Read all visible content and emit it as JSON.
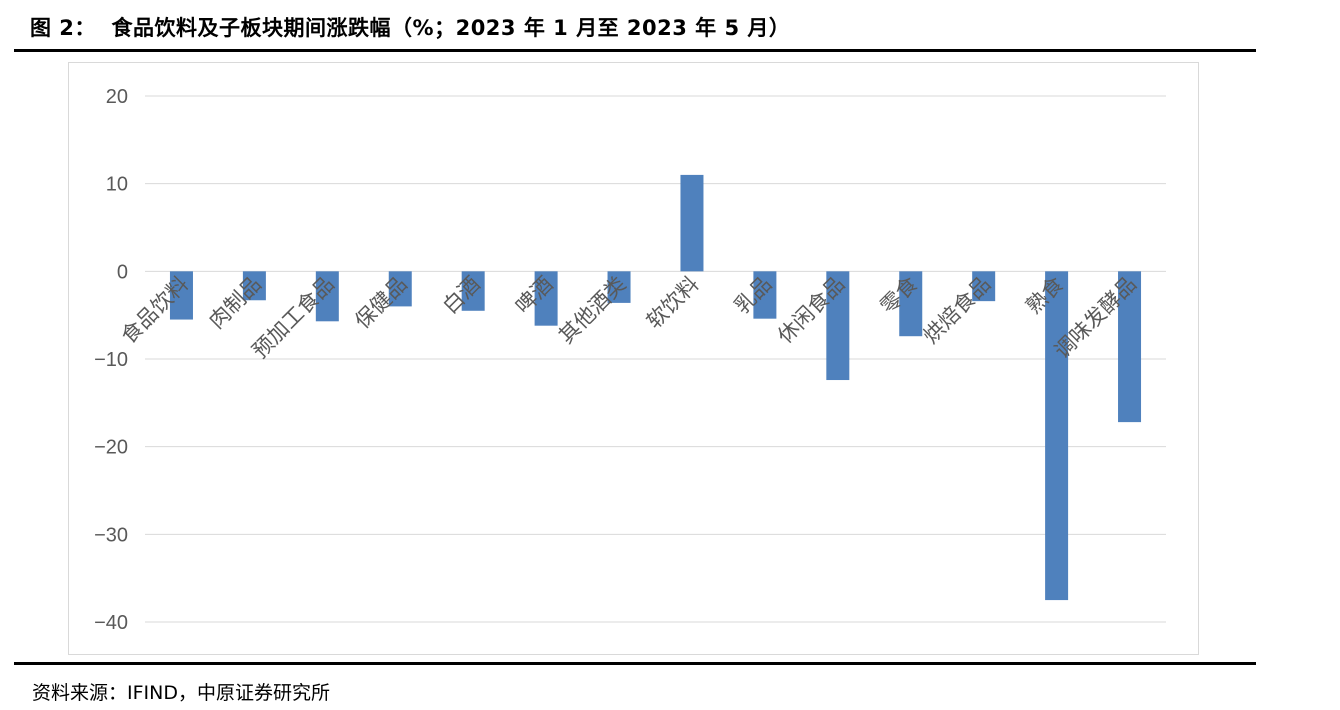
{
  "figure": {
    "title": "图 2：  食品饮料及子板块期间涨跌幅（%；2023 年 1 月至 2023 年 5 月）",
    "source": "资料来源：IFIND，中原证券研究所"
  },
  "colors": {
    "bar": "#4f81bd",
    "grid": "#d9d9d9",
    "tick_text": "#595959",
    "category_text": "#595959"
  },
  "chart_data": {
    "type": "bar",
    "categories": [
      "食品饮料",
      "肉制品",
      "预加工食品",
      "保健品",
      "白酒",
      "啤酒",
      "其他酒类",
      "软饮料",
      "乳品",
      "休闲食品",
      "零食",
      "烘焙食品",
      "熟食",
      "调味发酵品"
    ],
    "values": [
      -5.5,
      -3.3,
      -5.7,
      -4.0,
      -4.5,
      -6.2,
      -3.6,
      11.0,
      -5.4,
      -12.4,
      -7.4,
      -3.4,
      -37.5,
      -17.2
    ],
    "ylim": [
      -40,
      20
    ],
    "yticks": [
      20,
      10,
      0,
      -10,
      -20,
      -30,
      -40
    ],
    "ytick_labels": [
      "20",
      "10",
      "0",
      "−10",
      "−20",
      "−30",
      "−40"
    ],
    "title": "",
    "xlabel": "",
    "ylabel": "",
    "grid": true,
    "legend": "none"
  }
}
